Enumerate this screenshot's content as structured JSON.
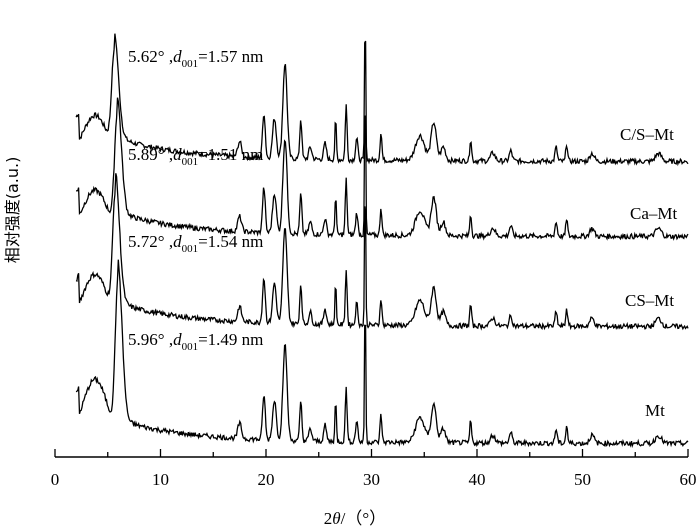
{
  "chart_data": {
    "type": "line",
    "xlabel_parts": {
      "pre": "2",
      "theta": "θ",
      "post": "/（°）"
    },
    "ylabel": "相对强度(a.u.)",
    "xlim": [
      0,
      60
    ],
    "xticks": [
      "0",
      "10",
      "20",
      "30",
      "40",
      "50",
      "60"
    ],
    "grid": false,
    "series": [
      {
        "name": "C/S–Mt",
        "color": "#000000",
        "peak": {
          "angle": "5.62°",
          "sep": " ,",
          "d": "d",
          "sub": "001",
          "value": "=1.57 nm"
        }
      },
      {
        "name": "Ca–Mt",
        "color": "#000000",
        "peak": {
          "angle": "5.89°",
          "sep": " ,",
          "d": "d",
          "sub": "001",
          "value": "=1.51 nm"
        }
      },
      {
        "name": "CS–Mt",
        "color": "#000000",
        "peak": {
          "angle": "5.72°",
          "sep": " ,",
          "d": "d",
          "sub": "001",
          "value": "=1.54 nm"
        }
      },
      {
        "name": "Mt",
        "color": "#000000",
        "peak": {
          "angle": "5.96°",
          "sep": " ,",
          "d": "d",
          "sub": "001",
          "value": "=1.49 nm"
        }
      }
    ]
  }
}
